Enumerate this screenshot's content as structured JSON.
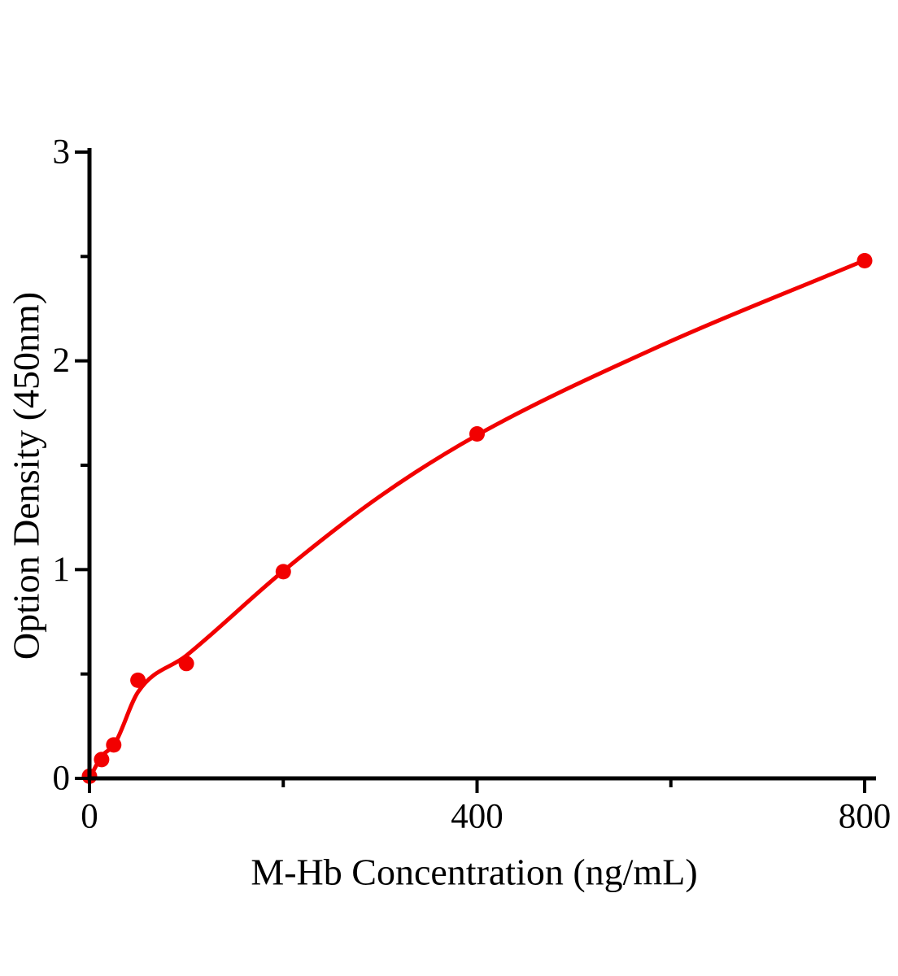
{
  "figure": {
    "background": "#ffffff"
  },
  "chart_data": {
    "type": "scatter",
    "title": "",
    "xlabel": "M-Hb Concentration (ng/mL)",
    "ylabel": "Option Density (450nm)",
    "xlim": [
      0,
      800
    ],
    "ylim": [
      0,
      3
    ],
    "x_major_ticks": [
      0,
      400,
      800
    ],
    "x_minor_ticks": [
      200,
      600
    ],
    "y_major_ticks": [
      0,
      1,
      2,
      3
    ],
    "y_minor_ticks": [
      0.5,
      1.5,
      2.5
    ],
    "x_tick_labels": [
      "0",
      "400",
      "800"
    ],
    "y_tick_labels": [
      "0",
      "1",
      "2",
      "3"
    ],
    "grid": false,
    "legend": null,
    "axis_color": "#000000",
    "series": [
      {
        "color": "#f20000",
        "marker": "circle",
        "points": [
          {
            "x": 0,
            "y": 0.01
          },
          {
            "x": 12.5,
            "y": 0.09
          },
          {
            "x": 25,
            "y": 0.16
          },
          {
            "x": 50,
            "y": 0.47
          },
          {
            "x": 100,
            "y": 0.55
          },
          {
            "x": 200,
            "y": 0.99
          },
          {
            "x": 400,
            "y": 1.65
          },
          {
            "x": 800,
            "y": 2.48
          }
        ],
        "fit_curve": [
          {
            "x": 0,
            "y": 0.0
          },
          {
            "x": 12.5,
            "y": 0.105
          },
          {
            "x": 26,
            "y": 0.165
          },
          {
            "x": 50,
            "y": 0.413
          },
          {
            "x": 100,
            "y": 0.588
          },
          {
            "x": 200,
            "y": 0.993
          },
          {
            "x": 300,
            "y": 1.352
          },
          {
            "x": 400,
            "y": 1.644
          },
          {
            "x": 580,
            "y": 2.053
          },
          {
            "x": 800,
            "y": 2.482
          }
        ]
      }
    ]
  }
}
